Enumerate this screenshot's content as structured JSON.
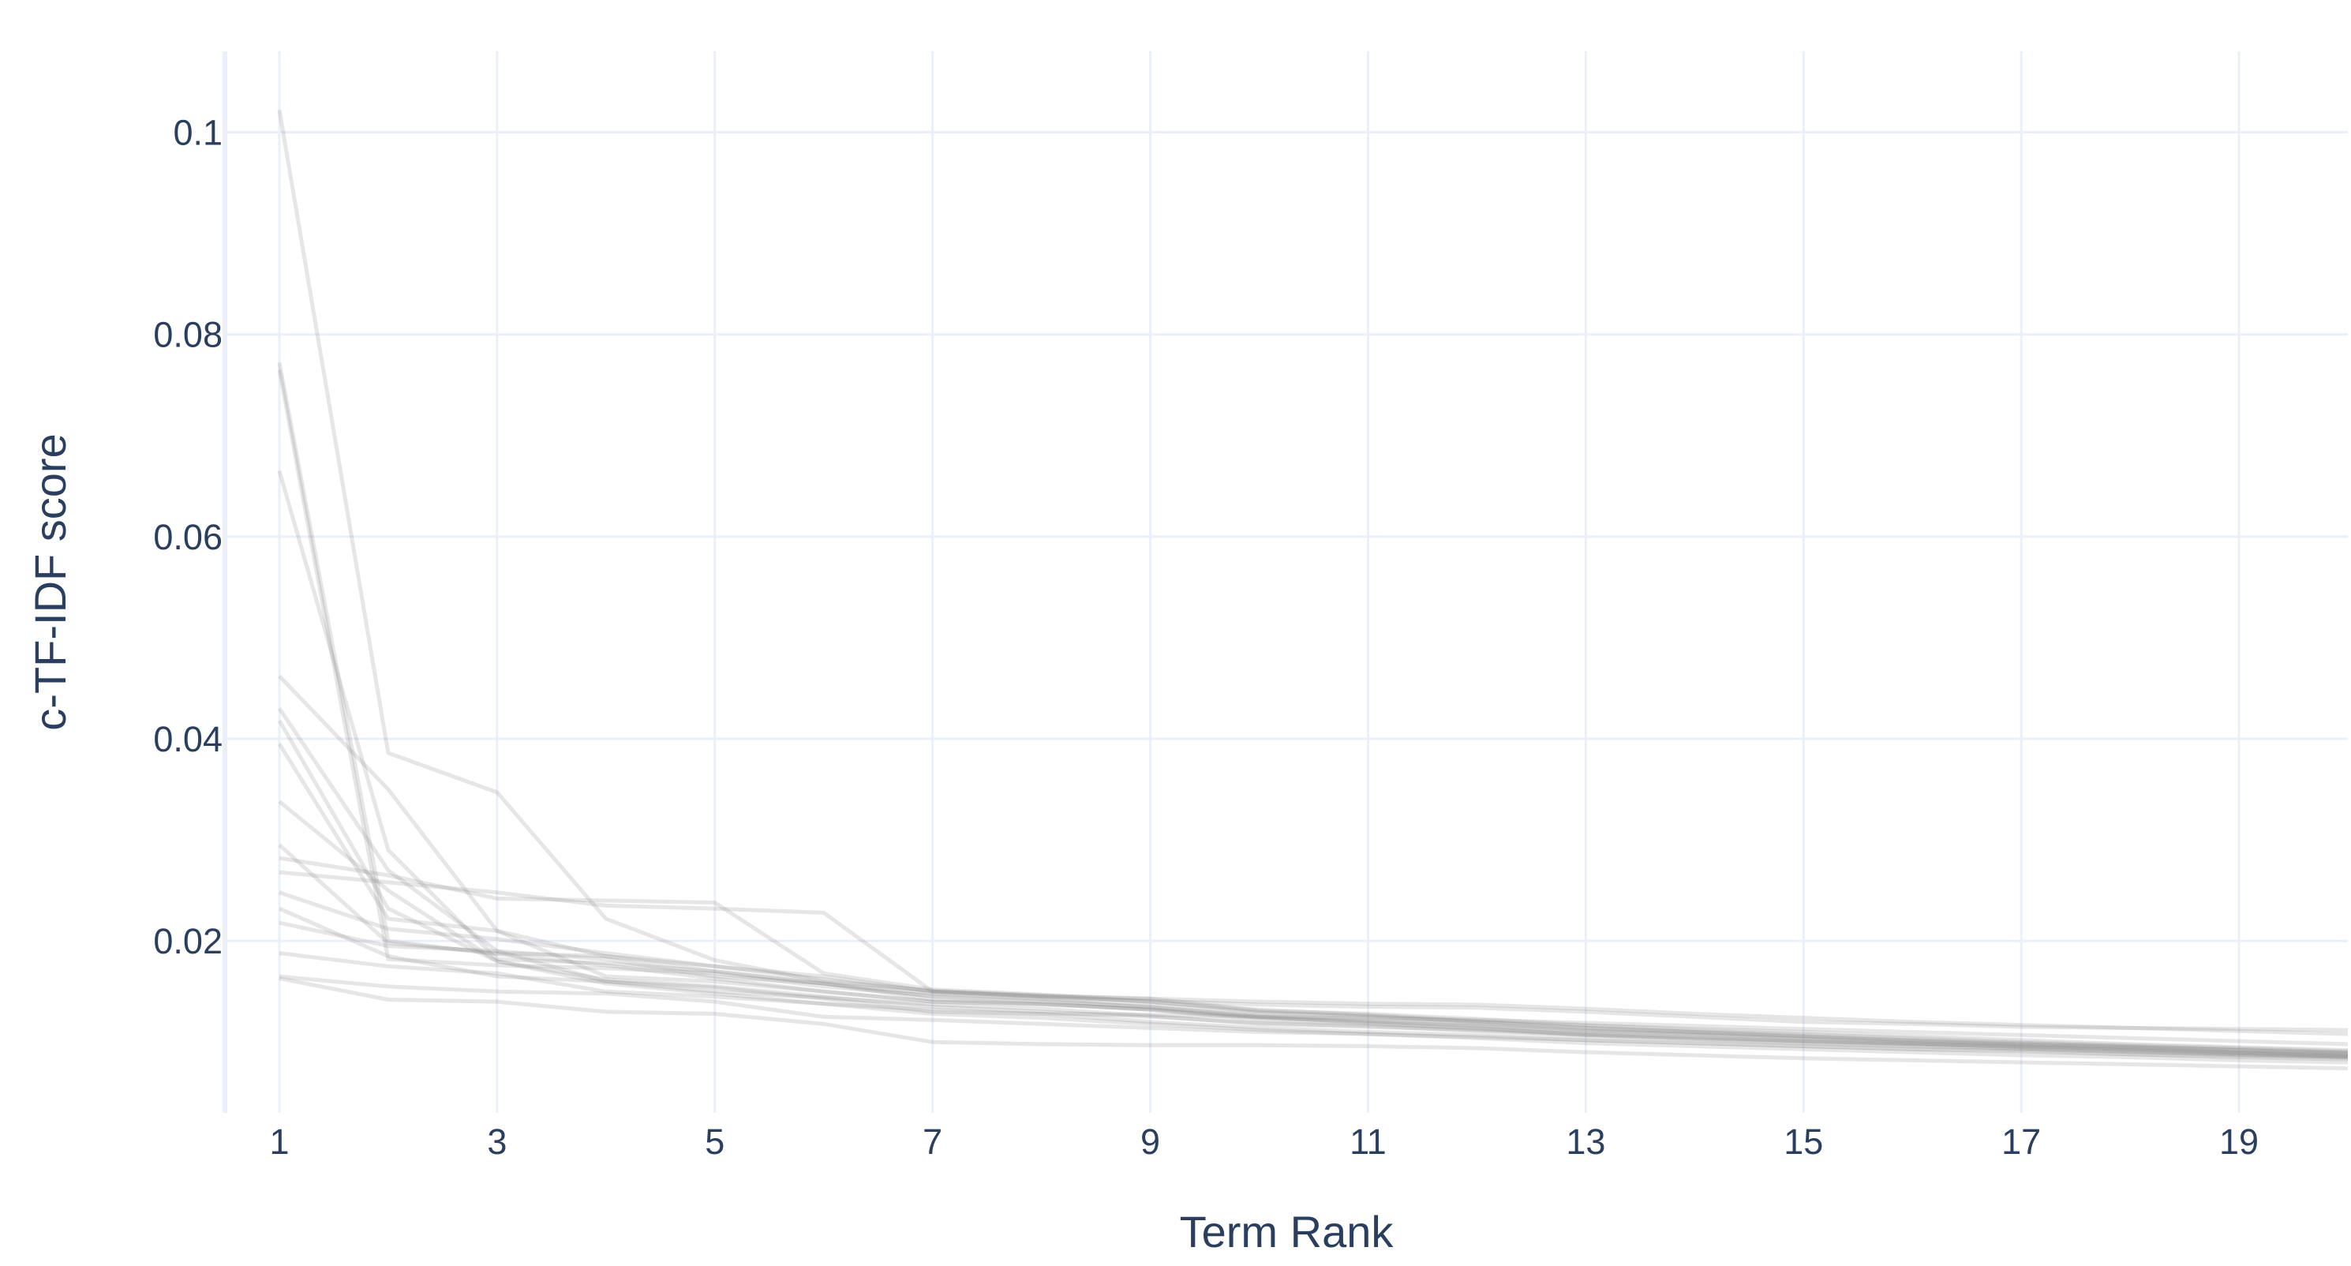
{
  "chart_data": {
    "type": "line",
    "xlabel": "Term Rank",
    "ylabel": "c-TF-IDF score",
    "xlim": [
      0.5,
      20
    ],
    "ylim": [
      0.003,
      0.108
    ],
    "x_ticks": [
      1,
      3,
      5,
      7,
      9,
      11,
      13,
      15,
      17,
      19
    ],
    "x_tick_labels": [
      "1",
      "3",
      "5",
      "7",
      "9",
      "11",
      "13",
      "15",
      "17",
      "19"
    ],
    "y_ticks": [
      0.02,
      0.04,
      0.06,
      0.08,
      0.1
    ],
    "y_tick_labels": [
      "0.02",
      "0.04",
      "0.06",
      "0.08",
      "0.1"
    ],
    "grid": true,
    "legend": false,
    "line_color": "#808080",
    "line_opacity": 0.2,
    "x": [
      1,
      2,
      3,
      4,
      5,
      6,
      7,
      8,
      9,
      10,
      11,
      12,
      13,
      14,
      15,
      16,
      17,
      18,
      19,
      20
    ],
    "series": [
      {
        "values": [
          0.1022,
          0.0386,
          0.0347,
          0.0222,
          0.0181,
          0.016,
          0.0151,
          0.0146,
          0.0143,
          0.0131,
          0.0128,
          0.0123,
          0.0117,
          0.0113,
          0.011,
          0.0106,
          0.0102,
          0.0098,
          0.0095,
          0.0092
        ]
      },
      {
        "values": [
          0.0772,
          0.02,
          0.0187,
          0.0176,
          0.0163,
          0.015,
          0.014,
          0.0137,
          0.0133,
          0.0124,
          0.012,
          0.0116,
          0.0111,
          0.0108,
          0.0104,
          0.01,
          0.0097,
          0.0094,
          0.009,
          0.0088
        ]
      },
      {
        "values": [
          0.0765,
          0.0182,
          0.0176,
          0.0173,
          0.0168,
          0.0155,
          0.0146,
          0.0142,
          0.0134,
          0.0126,
          0.0122,
          0.0118,
          0.0112,
          0.0109,
          0.0105,
          0.0101,
          0.0098,
          0.0095,
          0.0092,
          0.0089
        ]
      },
      {
        "values": [
          0.0665,
          0.029,
          0.0182,
          0.0178,
          0.017,
          0.0158,
          0.0148,
          0.0143,
          0.0137,
          0.0129,
          0.0125,
          0.012,
          0.0114,
          0.011,
          0.0106,
          0.0102,
          0.0099,
          0.0096,
          0.0093,
          0.009
        ]
      },
      {
        "values": [
          0.0462,
          0.035,
          0.021,
          0.0165,
          0.016,
          0.015,
          0.014,
          0.0138,
          0.0132,
          0.0125,
          0.0121,
          0.0116,
          0.011,
          0.0107,
          0.0103,
          0.0099,
          0.0096,
          0.0093,
          0.009,
          0.0087
        ]
      },
      {
        "values": [
          0.043,
          0.027,
          0.019,
          0.016,
          0.015,
          0.0144,
          0.0137,
          0.0133,
          0.0126,
          0.0118,
          0.0115,
          0.0112,
          0.0107,
          0.0104,
          0.0101,
          0.0098,
          0.0095,
          0.0092,
          0.0089,
          0.0086
        ]
      },
      {
        "values": [
          0.0418,
          0.0232,
          0.018,
          0.0162,
          0.0155,
          0.0145,
          0.0135,
          0.013,
          0.0125,
          0.0119,
          0.0116,
          0.0111,
          0.0106,
          0.0103,
          0.01,
          0.0097,
          0.0094,
          0.0091,
          0.0088,
          0.0085
        ]
      },
      {
        "values": [
          0.0395,
          0.0222,
          0.021,
          0.0185,
          0.017,
          0.0158,
          0.0142,
          0.0138,
          0.0132,
          0.0122,
          0.0118,
          0.0113,
          0.0108,
          0.0105,
          0.0101,
          0.0098,
          0.0095,
          0.0092,
          0.0089,
          0.0086
        ]
      },
      {
        "values": [
          0.0338,
          0.025,
          0.018,
          0.0158,
          0.0148,
          0.0138,
          0.0132,
          0.0128,
          0.012,
          0.0114,
          0.011,
          0.0107,
          0.0102,
          0.0099,
          0.0096,
          0.0093,
          0.0091,
          0.0088,
          0.0085,
          0.0083
        ]
      },
      {
        "values": [
          0.0295,
          0.0198,
          0.0188,
          0.0185,
          0.0175,
          0.0162,
          0.015,
          0.0145,
          0.014,
          0.0132,
          0.0127,
          0.0121,
          0.0116,
          0.0112,
          0.0108,
          0.0104,
          0.01,
          0.0097,
          0.0094,
          0.0091
        ]
      },
      {
        "values": [
          0.0282,
          0.0265,
          0.0242,
          0.024,
          0.0238,
          0.0168,
          0.0152,
          0.0147,
          0.014,
          0.013,
          0.0126,
          0.012,
          0.0114,
          0.011,
          0.0106,
          0.0102,
          0.0098,
          0.0095,
          0.0092,
          0.0089
        ]
      },
      {
        "values": [
          0.0268,
          0.0258,
          0.0248,
          0.0235,
          0.0232,
          0.0228,
          0.015,
          0.0145,
          0.0141,
          0.0137,
          0.0135,
          0.0134,
          0.013,
          0.0125,
          0.012,
          0.0118,
          0.0115,
          0.0114,
          0.0113,
          0.0112
        ]
      },
      {
        "values": [
          0.0248,
          0.0212,
          0.0202,
          0.0188,
          0.0175,
          0.0165,
          0.015,
          0.0146,
          0.0143,
          0.014,
          0.0138,
          0.0137,
          0.0133,
          0.0128,
          0.0124,
          0.012,
          0.0117,
          0.0114,
          0.0111,
          0.0108
        ]
      },
      {
        "values": [
          0.0232,
          0.0185,
          0.0165,
          0.016,
          0.0154,
          0.0143,
          0.013,
          0.0128,
          0.0127,
          0.0125,
          0.0124,
          0.0122,
          0.0119,
          0.0116,
          0.0113,
          0.011,
          0.0107,
          0.0104,
          0.0101,
          0.0098
        ]
      },
      {
        "values": [
          0.0165,
          0.0155,
          0.015,
          0.0148,
          0.014,
          0.0125,
          0.0122,
          0.0118,
          0.0114,
          0.011,
          0.0108,
          0.0105,
          0.0102,
          0.0099,
          0.0096,
          0.0093,
          0.0091,
          0.0088,
          0.0086,
          0.0084
        ]
      },
      {
        "values": [
          0.0163,
          0.0142,
          0.014,
          0.013,
          0.0128,
          0.0118,
          0.01,
          0.0098,
          0.0097,
          0.0097,
          0.0096,
          0.0094,
          0.009,
          0.0087,
          0.0084,
          0.0082,
          0.008,
          0.0078,
          0.0076,
          0.0074
        ]
      },
      {
        "values": [
          0.0218,
          0.0195,
          0.019,
          0.0182,
          0.0165,
          0.0158,
          0.0145,
          0.014,
          0.0135,
          0.0125,
          0.0119,
          0.0114,
          0.0107,
          0.0103,
          0.0099,
          0.0096,
          0.0093,
          0.009,
          0.0087,
          0.0085
        ]
      },
      {
        "values": [
          0.0188,
          0.0175,
          0.0168,
          0.015,
          0.0145,
          0.0138,
          0.0128,
          0.0124,
          0.0118,
          0.0112,
          0.0108,
          0.0104,
          0.0099,
          0.0096,
          0.0093,
          0.009,
          0.0087,
          0.0085,
          0.0082,
          0.008
        ]
      }
    ]
  }
}
